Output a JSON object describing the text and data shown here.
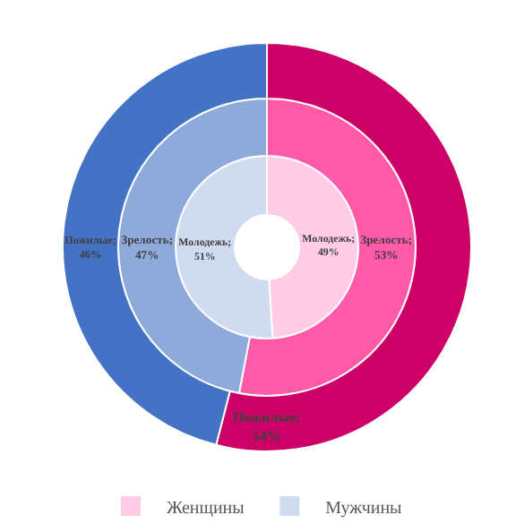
{
  "chart_data": {
    "type": "donut",
    "categories": [
      "Женщины",
      "Мужчины"
    ],
    "legend": "bottom",
    "series": [
      {
        "values": [
          49,
          51
        ],
        "colors": [
          "#ffcce6",
          "#cfdcf0"
        ],
        "value_labels": [
          "Молодежь;\n49%",
          "Молодежь;\n51%"
        ]
      },
      {
        "values": [
          53,
          47
        ],
        "colors": [
          "#ff5aa8",
          "#8eaadb"
        ],
        "value_labels": [
          "Зрелость;\n53%",
          "Зрелость;\n47%"
        ]
      },
      {
        "values": [
          54,
          46
        ],
        "colors": [
          "#cc0066",
          "#4472c4"
        ],
        "value_labels": [
          "Пожилые;\n54%",
          "Пожилые;\n46%"
        ]
      }
    ]
  }
}
